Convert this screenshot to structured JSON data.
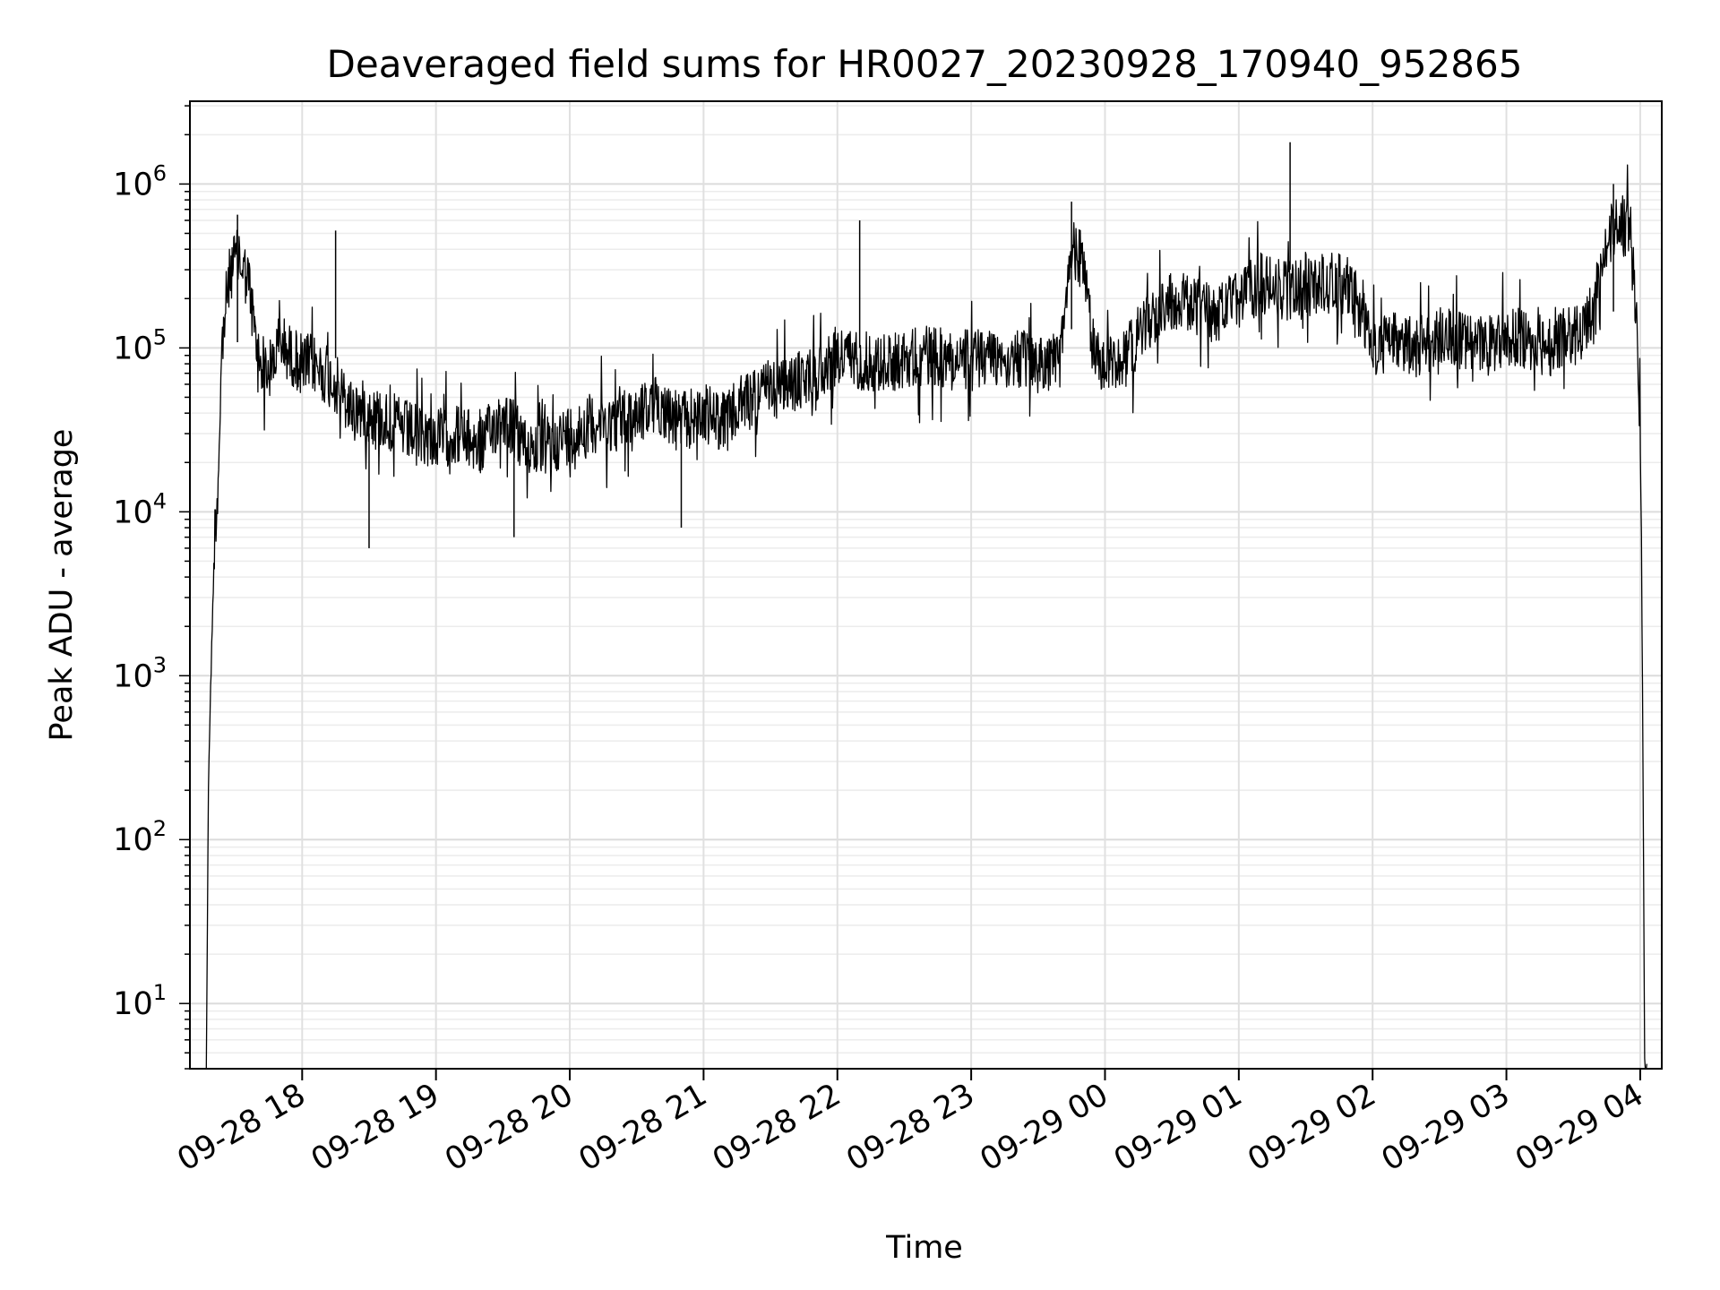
{
  "chart_data": {
    "type": "line",
    "title": "Deaveraged field sums for HR0027_20230928_170940_952865",
    "xlabel": "Time",
    "ylabel": "Peak ADU - average",
    "yscale": "log",
    "ylim": [
      4,
      3200000
    ],
    "xlim": [
      "2023-09-28 17:09:40",
      "2023-09-29 04:09:40"
    ],
    "x_ticks": [
      "09-28 18",
      "09-28 19",
      "09-28 20",
      "09-28 21",
      "09-28 22",
      "09-28 23",
      "09-29 00",
      "09-29 01",
      "09-29 02",
      "09-29 03",
      "09-29 04"
    ],
    "y_ticks": [
      {
        "base": "10",
        "exp": "1"
      },
      {
        "base": "10",
        "exp": "2"
      },
      {
        "base": "10",
        "exp": "3"
      },
      {
        "base": "10",
        "exp": "4"
      },
      {
        "base": "10",
        "exp": "5"
      },
      {
        "base": "10",
        "exp": "6"
      }
    ],
    "grid": true,
    "series": [
      {
        "color": "#000000",
        "x": [
          "2023-09-28 17:17",
          "2023-09-28 17:18",
          "2023-09-28 17:19",
          "2023-09-28 17:20",
          "2023-09-28 17:21",
          "2023-09-28 17:22",
          "2023-09-28 17:24",
          "2023-09-28 17:26",
          "2023-09-28 17:28",
          "2023-09-28 17:30",
          "2023-09-28 17:33",
          "2023-09-28 17:36",
          "2023-09-28 17:40",
          "2023-09-28 17:45",
          "2023-09-28 17:50",
          "2023-09-28 17:55",
          "2023-09-28 18:00",
          "2023-09-28 18:05",
          "2023-09-28 18:15",
          "2023-09-28 18:20",
          "2023-09-28 18:30",
          "2023-09-28 18:40",
          "2023-09-28 18:50",
          "2023-09-28 19:00",
          "2023-09-28 19:10",
          "2023-09-28 19:20",
          "2023-09-28 19:30",
          "2023-09-28 19:40",
          "2023-09-28 19:50",
          "2023-09-28 20:00",
          "2023-09-28 20:10",
          "2023-09-28 20:20",
          "2023-09-28 20:30",
          "2023-09-28 20:40",
          "2023-09-28 20:50",
          "2023-09-28 21:00",
          "2023-09-28 21:10",
          "2023-09-28 21:20",
          "2023-09-28 21:30",
          "2023-09-28 21:40",
          "2023-09-28 21:50",
          "2023-09-28 22:00",
          "2023-09-28 22:10",
          "2023-09-28 22:20",
          "2023-09-28 22:30",
          "2023-09-28 22:40",
          "2023-09-28 22:50",
          "2023-09-28 23:00",
          "2023-09-28 23:10",
          "2023-09-28 23:20",
          "2023-09-28 23:30",
          "2023-09-28 23:40",
          "2023-09-28 23:45",
          "2023-09-28 23:50",
          "2023-09-28 23:55",
          "2023-09-29 00:00",
          "2023-09-29 00:10",
          "2023-09-29 00:20",
          "2023-09-29 00:30",
          "2023-09-29 00:40",
          "2023-09-29 00:50",
          "2023-09-29 01:00",
          "2023-09-29 01:10",
          "2023-09-29 01:20",
          "2023-09-29 01:30",
          "2023-09-29 01:40",
          "2023-09-29 01:50",
          "2023-09-29 02:00",
          "2023-09-29 02:10",
          "2023-09-29 02:20",
          "2023-09-29 02:30",
          "2023-09-29 02:40",
          "2023-09-29 02:50",
          "2023-09-29 03:00",
          "2023-09-29 03:10",
          "2023-09-29 03:20",
          "2023-09-29 03:30",
          "2023-09-29 03:35",
          "2023-09-29 03:40",
          "2023-09-29 03:45",
          "2023-09-29 03:50",
          "2023-09-29 03:55",
          "2023-09-29 03:58",
          "2023-09-29 04:00",
          "2023-09-29 04:01",
          "2023-09-29 04:02",
          "2023-09-29 04:03"
        ],
        "y": [
          4,
          250,
          900,
          3000,
          9000,
          12000,
          100000,
          200000,
          300000,
          350000,
          320000,
          250000,
          90000,
          70000,
          110000,
          90000,
          80000,
          80000,
          60000,
          45000,
          40000,
          35000,
          30000,
          28000,
          30000,
          25000,
          40000,
          25000,
          25000,
          30000,
          35000,
          35000,
          40000,
          45000,
          35000,
          40000,
          35000,
          50000,
          55000,
          60000,
          70000,
          90000,
          85000,
          80000,
          85000,
          90000,
          85000,
          85000,
          90000,
          85000,
          80000,
          85000,
          400000,
          350000,
          90000,
          80000,
          90000,
          150000,
          200000,
          180000,
          160000,
          200000,
          250000,
          220000,
          230000,
          250000,
          240000,
          100000,
          110000,
          100000,
          120000,
          110000,
          100000,
          120000,
          110000,
          100000,
          120000,
          120000,
          200000,
          450000,
          600000,
          500000,
          200000,
          30000,
          1000,
          4,
          4
        ]
      }
    ],
    "spikes": [
      {
        "x": "2023-09-28 17:31",
        "y": 650000
      },
      {
        "x": "2023-09-28 18:15",
        "y": 520000
      },
      {
        "x": "2023-09-28 18:30",
        "y": 6000
      },
      {
        "x": "2023-09-28 19:35",
        "y": 7000
      },
      {
        "x": "2023-09-28 20:50",
        "y": 8000
      },
      {
        "x": "2023-09-28 22:10",
        "y": 600000
      },
      {
        "x": "2023-09-28 23:45",
        "y": 780000
      },
      {
        "x": "2023-09-29 01:23",
        "y": 1800000
      },
      {
        "x": "2023-09-29 03:48",
        "y": 1000000
      }
    ]
  }
}
